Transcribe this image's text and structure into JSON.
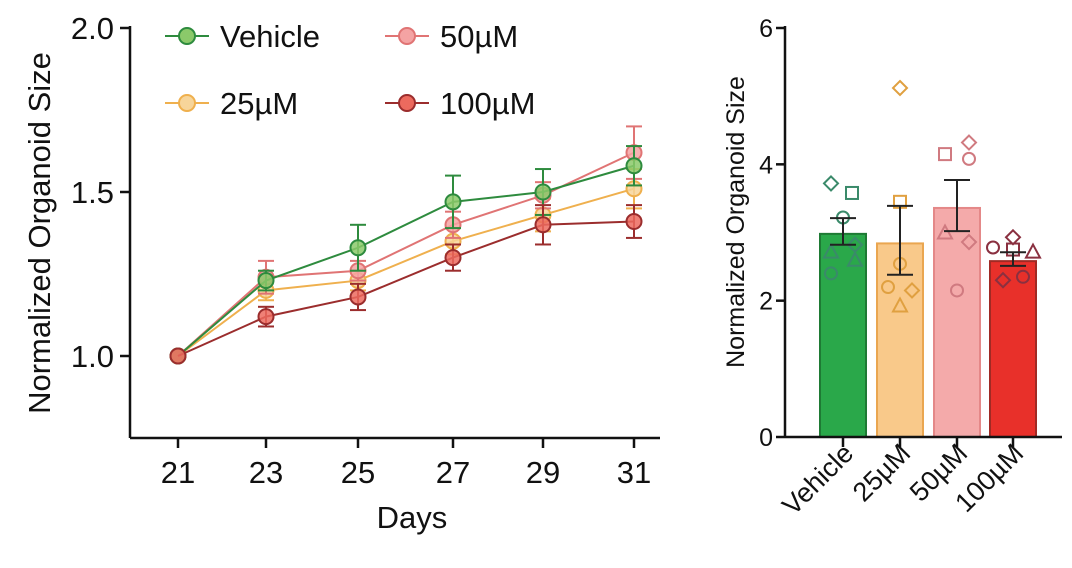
{
  "colors": {
    "Vehicle": {
      "line": "#2e8b3e",
      "fill": "#8bc96a",
      "bar": "#2aa84a",
      "barStroke": "#1e7a34",
      "pt": "#3a8a6a"
    },
    "25µM": {
      "line": "#efb04e",
      "fill": "#f7d59a",
      "bar": "#f9c98a",
      "barStroke": "#eaa650",
      "pt": "#e0a040"
    },
    "50µM": {
      "line": "#e07474",
      "fill": "#f4a3a3",
      "bar": "#f4aaaa",
      "barStroke": "#e48888",
      "pt": "#d07a80"
    },
    "100µM": {
      "line": "#9b2d2d",
      "fill": "#ec6a5e",
      "bar": "#e8302a",
      "barStroke": "#a02a24",
      "pt": "#8a3040"
    }
  },
  "chart_data": [
    {
      "type": "line",
      "title": "",
      "xlabel": "Days",
      "ylabel": "Normalized Organoid Size",
      "x": [
        21,
        23,
        25,
        27,
        29,
        31
      ],
      "xticks": [
        "21",
        "23",
        "25",
        "27",
        "29",
        "31"
      ],
      "ylim": [
        0.75,
        2.0
      ],
      "yticks": [
        "1.0",
        "1.5",
        "2.0"
      ],
      "legend_position": "top-left",
      "series": [
        {
          "name": "Vehicle",
          "values": [
            1.0,
            1.23,
            1.33,
            1.47,
            1.5,
            1.58
          ],
          "err": [
            0,
            0.03,
            0.07,
            0.08,
            0.07,
            0.06
          ]
        },
        {
          "name": "25µM",
          "values": [
            1.0,
            1.2,
            1.23,
            1.35,
            1.43,
            1.51
          ],
          "err": [
            0,
            0.03,
            0.03,
            0.04,
            0.05,
            0.06
          ]
        },
        {
          "name": "50µM",
          "values": [
            1.0,
            1.24,
            1.26,
            1.4,
            1.49,
            1.62
          ],
          "err": [
            0,
            0.05,
            0.03,
            0.04,
            0.04,
            0.08
          ]
        },
        {
          "name": "100µM",
          "values": [
            1.0,
            1.12,
            1.18,
            1.3,
            1.4,
            1.41
          ],
          "err": [
            0,
            0.03,
            0.04,
            0.04,
            0.06,
            0.05
          ]
        }
      ]
    },
    {
      "type": "bar",
      "title": "",
      "xlabel": "",
      "ylabel": "Normalized Organoid Size",
      "categories": [
        "Vehicle",
        "25µM",
        "50µM",
        "100µM"
      ],
      "values": [
        2.98,
        2.84,
        3.36,
        2.58
      ],
      "err_upper": [
        3.21,
        3.39,
        3.77,
        2.71
      ],
      "err_lower": [
        2.82,
        2.38,
        3.02,
        2.51
      ],
      "ylim": [
        0,
        6
      ],
      "yticks": [
        "0",
        "2",
        "4",
        "6"
      ],
      "points": [
        [
          {
            "shape": "diamond",
            "v": 3.72,
            "dx": -12
          },
          {
            "shape": "square",
            "v": 3.58,
            "dx": 9
          },
          {
            "shape": "circle",
            "v": 3.22,
            "dx": 0
          },
          {
            "shape": "diamond",
            "v": 2.82,
            "dx": 12
          },
          {
            "shape": "triangle",
            "v": 2.72,
            "dx": -12
          },
          {
            "shape": "triangle",
            "v": 2.6,
            "dx": 12
          },
          {
            "shape": "circle",
            "v": 2.4,
            "dx": -12
          }
        ],
        [
          {
            "shape": "diamond",
            "v": 5.12,
            "dx": 0
          },
          {
            "shape": "square",
            "v": 3.45,
            "dx": 0
          },
          {
            "shape": "circle",
            "v": 2.54,
            "dx": 0
          },
          {
            "shape": "circle",
            "v": 2.2,
            "dx": -12
          },
          {
            "shape": "diamond",
            "v": 2.15,
            "dx": 12
          },
          {
            "shape": "triangle",
            "v": 1.93,
            "dx": 0
          }
        ],
        [
          {
            "shape": "diamond",
            "v": 4.32,
            "dx": 12
          },
          {
            "shape": "square",
            "v": 4.15,
            "dx": -12
          },
          {
            "shape": "circle",
            "v": 4.08,
            "dx": 12
          },
          {
            "shape": "triangle",
            "v": 3.0,
            "dx": -12
          },
          {
            "shape": "diamond",
            "v": 2.86,
            "dx": 12
          },
          {
            "shape": "circle",
            "v": 2.15,
            "dx": 0
          }
        ],
        [
          {
            "shape": "diamond",
            "v": 2.93,
            "dx": 0
          },
          {
            "shape": "circle",
            "v": 2.78,
            "dx": -20
          },
          {
            "shape": "square",
            "v": 2.75,
            "dx": 0
          },
          {
            "shape": "triangle",
            "v": 2.72,
            "dx": 20
          },
          {
            "shape": "circle",
            "v": 2.35,
            "dx": 10
          },
          {
            "shape": "diamond",
            "v": 2.3,
            "dx": -10
          }
        ]
      ]
    }
  ]
}
